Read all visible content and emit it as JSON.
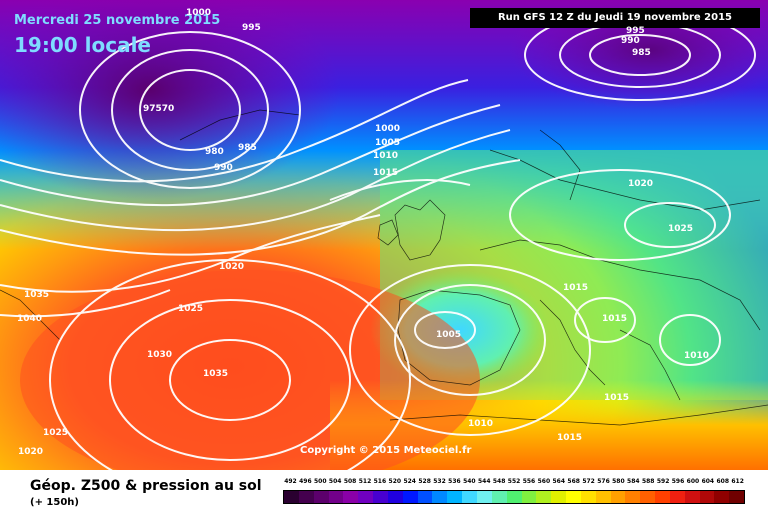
{
  "header": {
    "date": "Mercredi 25 novembre 2015",
    "time": "19:00 locale",
    "run": "Run GFS 12 Z du Jeudi 19 novembre 2015"
  },
  "copyright": "Copyright © 2015 Meteociel.fr",
  "footer": {
    "title": "Géop. Z500 & pression au sol",
    "subtitle": "(+ 150h)"
  },
  "legend": {
    "values": [
      "492",
      "496",
      "500",
      "504",
      "508",
      "512",
      "516",
      "520",
      "524",
      "528",
      "532",
      "536",
      "540",
      "544",
      "548",
      "552",
      "556",
      "560",
      "564",
      "568",
      "572",
      "576",
      "580",
      "584",
      "588",
      "592",
      "596",
      "600",
      "604",
      "608",
      "612"
    ],
    "colors": [
      "#2a0030",
      "#44004e",
      "#5c006c",
      "#72008a",
      "#8a00a8",
      "#7000c0",
      "#4800d0",
      "#2000e0",
      "#0018ff",
      "#0050ff",
      "#0088ff",
      "#00b4ff",
      "#40d8ff",
      "#70f0f0",
      "#60f0b0",
      "#50f070",
      "#80f040",
      "#b0f020",
      "#e0f000",
      "#ffff00",
      "#ffe000",
      "#ffc000",
      "#ffa000",
      "#ff8000",
      "#ff6000",
      "#ff4000",
      "#f02010",
      "#d01010",
      "#b00808",
      "#900000",
      "#700000"
    ]
  },
  "isobars": [
    {
      "text": "1000",
      "pos": "a"
    },
    {
      "text": "995",
      "pos": "b"
    },
    {
      "text": "97570",
      "pos": "c"
    },
    {
      "text": "980",
      "pos": "d"
    },
    {
      "text": "985",
      "pos": "e"
    },
    {
      "text": "990",
      "pos": "f"
    },
    {
      "text": "1000",
      "pos": "g"
    },
    {
      "text": "1005",
      "pos": "h"
    },
    {
      "text": "1010",
      "pos": "i"
    },
    {
      "text": "1015",
      "pos": "j"
    },
    {
      "text": "995",
      "pos": "k"
    },
    {
      "text": "990",
      "pos": "l"
    },
    {
      "text": "985",
      "pos": "m"
    },
    {
      "text": "1020",
      "pos": "n"
    },
    {
      "text": "1025",
      "pos": "o"
    },
    {
      "text": "1020",
      "pos": "p"
    },
    {
      "text": "1035",
      "pos": "q"
    },
    {
      "text": "1040",
      "pos": "r"
    },
    {
      "text": "1025",
      "pos": "s"
    },
    {
      "text": "1030",
      "pos": "t"
    },
    {
      "text": "1035",
      "pos": "u"
    },
    {
      "text": "1025",
      "pos": "v"
    },
    {
      "text": "1020",
      "pos": "w"
    },
    {
      "text": "1005",
      "pos": "x"
    },
    {
      "text": "1015",
      "pos": "y"
    },
    {
      "text": "1015",
      "pos": "z"
    },
    {
      "text": "1010",
      "pos": "aa"
    },
    {
      "text": "1015",
      "pos": "ab"
    },
    {
      "text": "1010",
      "pos": "ac"
    },
    {
      "text": "1015",
      "pos": "ad"
    }
  ]
}
